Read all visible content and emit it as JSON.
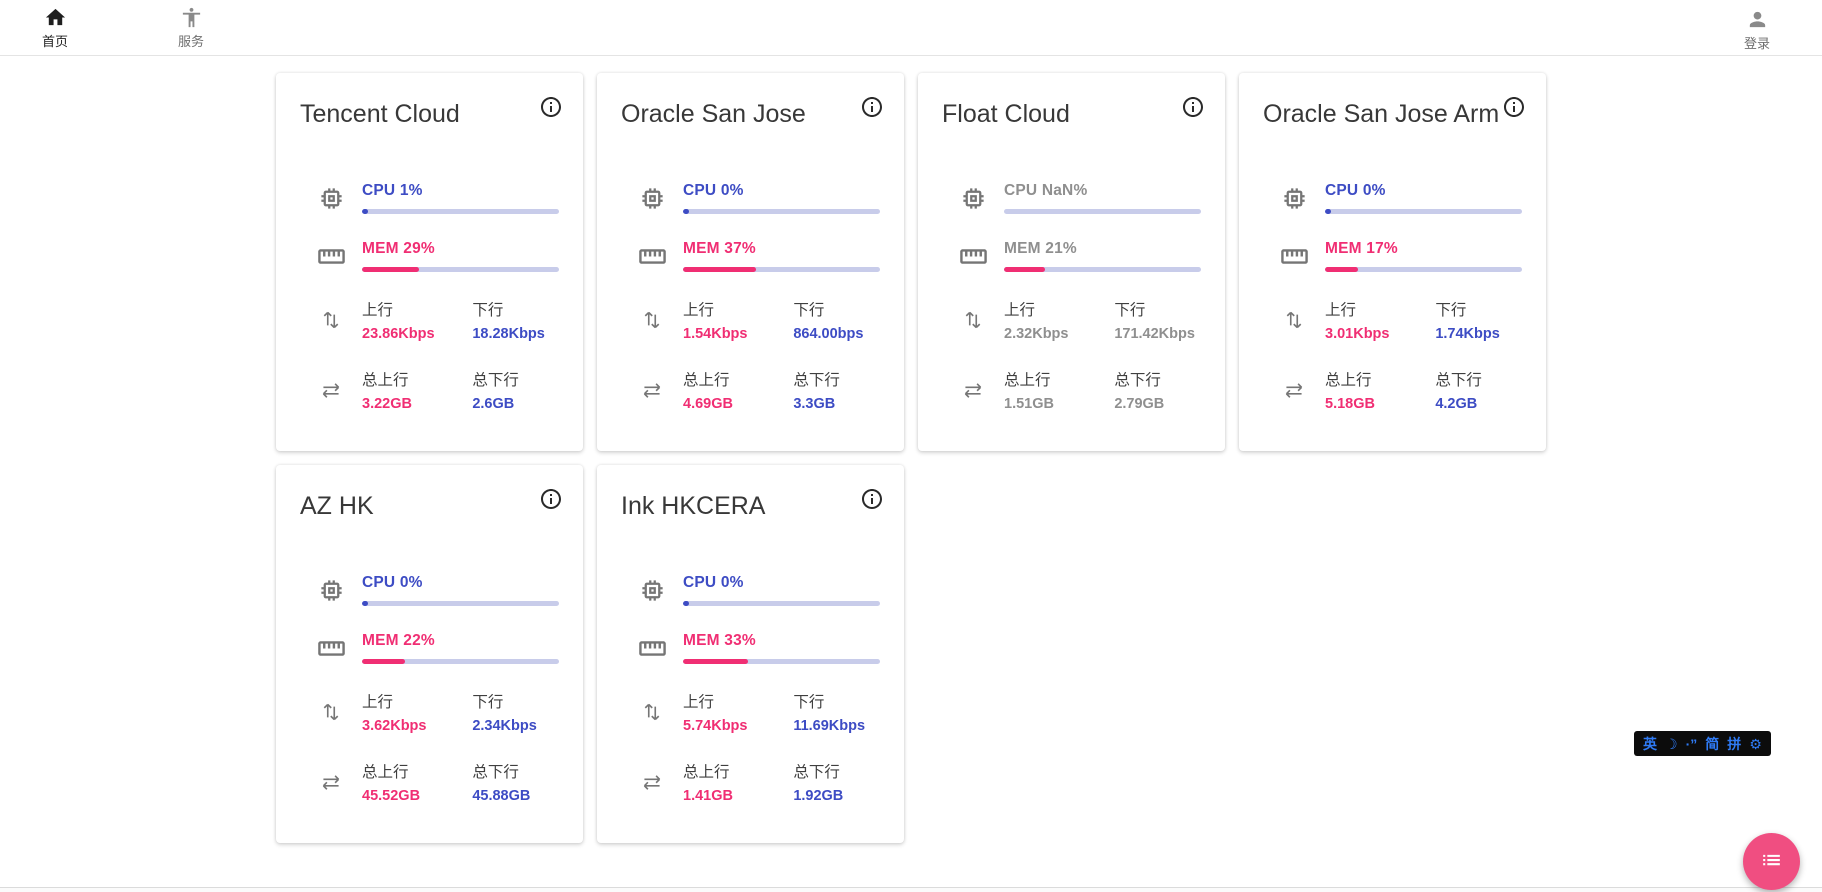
{
  "nav": {
    "home": {
      "label": "首页",
      "icon": "home-icon",
      "active": true
    },
    "services": {
      "label": "服务",
      "icon": "accessibility-icon",
      "active": false
    },
    "login": {
      "label": "登录",
      "icon": "person-icon",
      "active": false
    }
  },
  "labels": {
    "upload": "上行",
    "download": "下行",
    "total_upload": "总上行",
    "total_download": "总下行"
  },
  "servers": [
    {
      "name": "Tencent Cloud",
      "cpu_text": "CPU 1%",
      "cpu_pct": 1,
      "mem_text": "MEM 29%",
      "mem_pct": 29,
      "upload": "23.86Kbps",
      "download": "18.28Kbps",
      "total_upload": "3.22GB",
      "total_download": "2.6GB",
      "offline": false
    },
    {
      "name": "Oracle San Jose",
      "cpu_text": "CPU 0%",
      "cpu_pct": 0,
      "mem_text": "MEM 37%",
      "mem_pct": 37,
      "upload": "1.54Kbps",
      "download": "864.00bps",
      "total_upload": "4.69GB",
      "total_download": "3.3GB",
      "offline": false
    },
    {
      "name": "Float Cloud",
      "cpu_text": "CPU NaN%",
      "cpu_pct": null,
      "mem_text": "MEM 21%",
      "mem_pct": 21,
      "upload": "2.32Kbps",
      "download": "171.42Kbps",
      "total_upload": "1.51GB",
      "total_download": "2.79GB",
      "offline": true
    },
    {
      "name": "Oracle San Jose Arm",
      "cpu_text": "CPU 0%",
      "cpu_pct": 0,
      "mem_text": "MEM 17%",
      "mem_pct": 17,
      "upload": "3.01Kbps",
      "download": "1.74Kbps",
      "total_upload": "5.18GB",
      "total_download": "4.2GB",
      "offline": false
    },
    {
      "name": "AZ HK",
      "cpu_text": "CPU 0%",
      "cpu_pct": 0,
      "mem_text": "MEM 22%",
      "mem_pct": 22,
      "upload": "3.62Kbps",
      "download": "2.34Kbps",
      "total_upload": "45.52GB",
      "total_download": "45.88GB",
      "offline": false
    },
    {
      "name": "Ink HKCERA",
      "cpu_text": "CPU 0%",
      "cpu_pct": 0,
      "mem_text": "MEM 33%",
      "mem_pct": 33,
      "upload": "5.74Kbps",
      "download": "11.69Kbps",
      "total_upload": "1.41GB",
      "total_download": "1.92GB",
      "offline": false
    }
  ],
  "ime": {
    "items": [
      "英",
      "☽",
      "·”",
      "简",
      "拼",
      "⚙"
    ]
  },
  "colors": {
    "blue": "#3D4CC4",
    "pink": "#F02E73",
    "track": "#C8CCEA",
    "fab": "#F04E81",
    "ime_blue": "#2F7BF6"
  }
}
